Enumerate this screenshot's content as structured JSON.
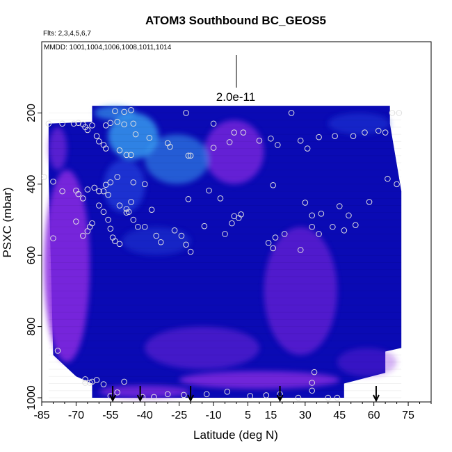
{
  "chart_data": {
    "type": "heatmap",
    "title": "ATOM3 Southbound BC_GEOS5",
    "flights_note": "Flts: 2,3,4,5,6,7",
    "dates_note": "MMDD: 1001,1004,1006,1008,1011,1014",
    "scale_label": "2.0e-11",
    "xlabel": "Latitude (deg N)",
    "ylabel": "PSXC (mbar)",
    "xlim": [
      -85,
      85
    ],
    "ylim": [
      1000,
      0
    ],
    "x_ticks": [
      "-85",
      "-70",
      "-55",
      "-40",
      "-25",
      "-10",
      "5",
      "15",
      "30",
      "45",
      "60",
      "75"
    ],
    "y_ticks": [
      "200",
      "400",
      "600",
      "800",
      "1000"
    ],
    "colors": {
      "low": "#0a0ab4",
      "mid": "#1f3cd8",
      "high_cyan": "#3aa0f0",
      "high_purple": "#8a2be2",
      "point_stroke": "#e0e0e0"
    },
    "arrows_latitude": [
      -54,
      -42,
      -20,
      19,
      61
    ],
    "curtain_extent": {
      "pressure_top_mbar": 180,
      "lat_west_top": -63,
      "lat_east_top": 67,
      "lat_west_mid": -82,
      "lat_east_mid": 72,
      "lat_west_bottom": -63,
      "lat_east_bottom": 47
    },
    "observations": [
      [
        -82,
        230
      ],
      [
        -76,
        230
      ],
      [
        -71,
        230
      ],
      [
        -69,
        228
      ],
      [
        -67,
        232
      ],
      [
        -66,
        240
      ],
      [
        -65,
        248
      ],
      [
        -63,
        235
      ],
      [
        -57,
        235
      ],
      [
        -55,
        228
      ],
      [
        -52,
        225
      ],
      [
        -49,
        232
      ],
      [
        -45,
        230
      ],
      [
        -53,
        195
      ],
      [
        -49,
        197
      ],
      [
        -46,
        192
      ],
      [
        -22,
        200
      ],
      [
        -10,
        230
      ],
      [
        -3,
        282
      ],
      [
        -1,
        255
      ],
      [
        3,
        255
      ],
      [
        10,
        278
      ],
      [
        15,
        272
      ],
      [
        18,
        290
      ],
      [
        24,
        200
      ],
      [
        28,
        278
      ],
      [
        31,
        300
      ],
      [
        36,
        268
      ],
      [
        43,
        265
      ],
      [
        51,
        265
      ],
      [
        56,
        255
      ],
      [
        62,
        250
      ],
      [
        65,
        255
      ],
      [
        68,
        200
      ],
      [
        71,
        200
      ],
      [
        -61,
        265
      ],
      [
        -60,
        280
      ],
      [
        -58,
        290
      ],
      [
        -57,
        300
      ],
      [
        -51,
        305
      ],
      [
        -48,
        318
      ],
      [
        -46,
        318
      ],
      [
        -44,
        260
      ],
      [
        -38,
        270
      ],
      [
        -30,
        285
      ],
      [
        -29,
        295
      ],
      [
        -21,
        320
      ],
      [
        -20,
        320
      ],
      [
        -10,
        298
      ],
      [
        -84,
        380
      ],
      [
        -80,
        393
      ],
      [
        -76,
        420
      ],
      [
        -70,
        418
      ],
      [
        -69,
        428
      ],
      [
        -67,
        440
      ],
      [
        -65,
        415
      ],
      [
        -62,
        410
      ],
      [
        -60,
        420
      ],
      [
        -58,
        420
      ],
      [
        -57,
        402
      ],
      [
        -56,
        430
      ],
      [
        -55,
        395
      ],
      [
        -52,
        380
      ],
      [
        -51,
        460
      ],
      [
        -48,
        470
      ],
      [
        -46,
        450
      ],
      [
        -45,
        395
      ],
      [
        -40,
        400
      ],
      [
        -37,
        472
      ],
      [
        -21,
        442
      ],
      [
        -12,
        418
      ],
      [
        -7,
        440
      ],
      [
        -1,
        490
      ],
      [
        1,
        495
      ],
      [
        2,
        485
      ],
      [
        16,
        403
      ],
      [
        30,
        452
      ],
      [
        33,
        488
      ],
      [
        37,
        483
      ],
      [
        45,
        462
      ],
      [
        49,
        488
      ],
      [
        52,
        515
      ],
      [
        58,
        450
      ],
      [
        70,
        400
      ],
      [
        66,
        385
      ],
      [
        -70,
        505
      ],
      [
        -67,
        545
      ],
      [
        -65,
        532
      ],
      [
        -64,
        520
      ],
      [
        -63,
        510
      ],
      [
        -60,
        460
      ],
      [
        -58,
        478
      ],
      [
        -56,
        500
      ],
      [
        -55,
        525
      ],
      [
        -54,
        550
      ],
      [
        -53,
        560
      ],
      [
        -51,
        568
      ],
      [
        -48,
        480
      ],
      [
        -47,
        478
      ],
      [
        -45,
        500
      ],
      [
        -43,
        520
      ],
      [
        -40,
        520
      ],
      [
        -35,
        545
      ],
      [
        -33,
        563
      ],
      [
        -27,
        530
      ],
      [
        -24,
        545
      ],
      [
        -22,
        570
      ],
      [
        -20,
        590
      ],
      [
        -14,
        518
      ],
      [
        -5,
        540
      ],
      [
        -2,
        510
      ],
      [
        14,
        565
      ],
      [
        16,
        580
      ],
      [
        17,
        550
      ],
      [
        21,
        540
      ],
      [
        28,
        585
      ],
      [
        33,
        520
      ],
      [
        36,
        540
      ],
      [
        42,
        520
      ],
      [
        47,
        530
      ],
      [
        -80,
        552
      ],
      [
        -78,
        868
      ],
      [
        -66,
        948
      ],
      [
        -66,
        958
      ],
      [
        -64,
        958
      ],
      [
        -63,
        955
      ],
      [
        -61,
        950
      ],
      [
        -58,
        962
      ],
      [
        -55,
        995
      ],
      [
        -52,
        985
      ],
      [
        -49,
        955
      ],
      [
        -41,
        998
      ],
      [
        -36,
        998
      ],
      [
        -30,
        990
      ],
      [
        -23,
        992
      ],
      [
        -13,
        990
      ],
      [
        -4,
        983
      ],
      [
        6,
        995
      ],
      [
        13,
        993
      ],
      [
        19,
        990
      ],
      [
        27,
        1000
      ],
      [
        33,
        980
      ],
      [
        33,
        958
      ],
      [
        34,
        928
      ],
      [
        40,
        1000
      ],
      [
        44,
        1000
      ]
    ]
  }
}
